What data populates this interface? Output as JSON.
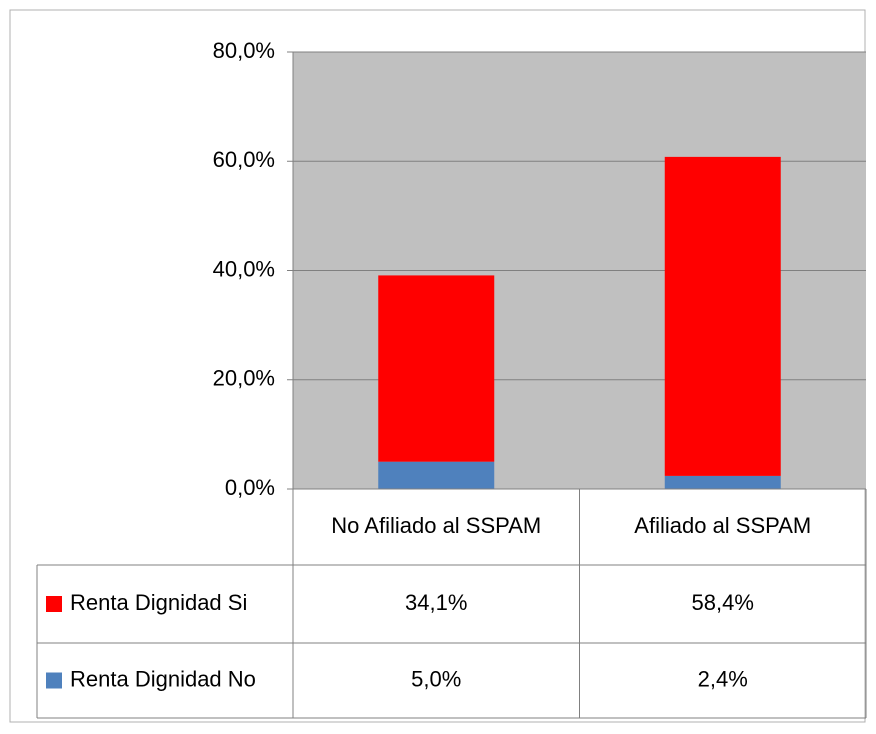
{
  "chart_data": {
    "type": "stacked_bar",
    "categories": [
      "No Afiliado al SSPAM",
      "Afiliado al SSPAM"
    ],
    "series": [
      {
        "name": "Renta Dignidad Si",
        "color": "#ff0000",
        "values": [
          34.1,
          58.4
        ],
        "value_labels": [
          "34,1%",
          "58,4%"
        ]
      },
      {
        "name": "Renta Dignidad No",
        "color": "#4f81bd",
        "values": [
          5.0,
          2.4
        ],
        "value_labels": [
          "5,0%",
          "2,4%"
        ]
      }
    ],
    "ylim": [
      0,
      80
    ],
    "yticks": [
      {
        "value": 0,
        "label": "0,0%"
      },
      {
        "value": 20,
        "label": "20,0%"
      },
      {
        "value": 40,
        "label": "40,0%"
      },
      {
        "value": 60,
        "label": "60,0%"
      },
      {
        "value": 80,
        "label": "80,0%"
      }
    ],
    "grid": true,
    "plot_background": "#c0c0c0"
  }
}
